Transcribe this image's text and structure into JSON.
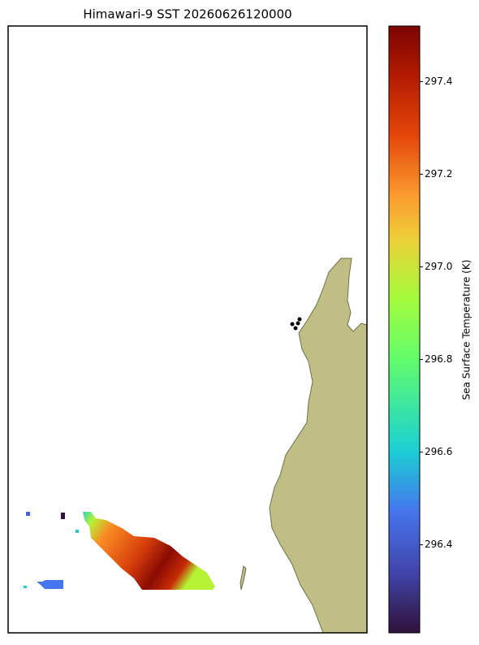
{
  "chart_data": {
    "type": "map",
    "title": "Himawari-9 SST 20260626120000",
    "colorbar_label": "Sea Surface Temperature (K)",
    "clim": [
      296.21,
      297.52
    ],
    "cticks": [
      296.4,
      296.6,
      296.8,
      {
        "value": 297,
        "label": "297.0"
      },
      297.2,
      297.4
    ]
  }
}
